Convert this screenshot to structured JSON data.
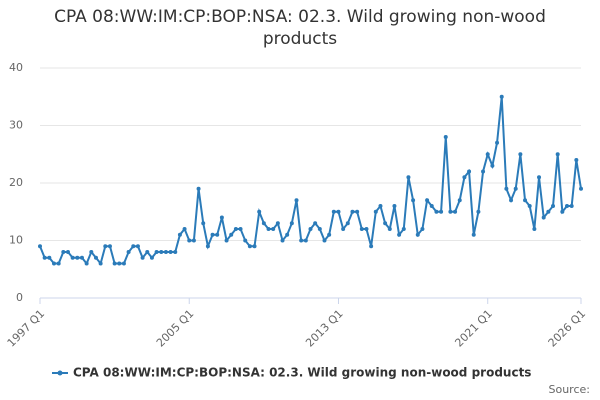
{
  "chart_data": {
    "type": "line",
    "title": "CPA 08:WW:IM:CP:BOP:NSA: 02.3. Wild growing non-wood products",
    "source": "Source:",
    "categories": [
      "1997 Q1",
      null,
      null,
      null,
      null,
      null,
      null,
      null,
      null,
      null,
      null,
      null,
      null,
      null,
      null,
      null,
      null,
      null,
      null,
      null,
      null,
      null,
      null,
      null,
      null,
      null,
      null,
      null,
      null,
      null,
      null,
      null,
      "2005 Q1",
      null,
      null,
      null,
      null,
      null,
      null,
      null,
      null,
      null,
      null,
      null,
      null,
      null,
      null,
      null,
      null,
      null,
      null,
      null,
      null,
      null,
      null,
      null,
      null,
      null,
      null,
      null,
      null,
      null,
      null,
      null,
      "2013 Q1",
      null,
      null,
      null,
      null,
      null,
      null,
      null,
      null,
      null,
      null,
      null,
      null,
      null,
      null,
      null,
      null,
      null,
      null,
      null,
      null,
      null,
      null,
      null,
      null,
      null,
      null,
      null,
      null,
      null,
      null,
      null,
      "2021 Q1",
      null,
      null,
      null,
      null,
      null,
      null,
      null,
      null,
      null,
      null,
      null,
      null,
      null,
      null,
      null,
      null,
      null,
      null,
      null,
      "2026 Q1"
    ],
    "series": [
      {
        "name": "CPA 08:WW:IM:CP:BOP:NSA: 02.3. Wild growing non-wood products",
        "color": "#2b7bb9",
        "values": [
          9,
          7,
          7,
          6,
          6,
          8,
          8,
          7,
          7,
          7,
          6,
          8,
          7,
          6,
          9,
          9,
          6,
          6,
          6,
          8,
          9,
          9,
          7,
          8,
          7,
          8,
          8,
          8,
          8,
          8,
          11,
          12,
          10,
          10,
          19,
          13,
          9,
          11,
          11,
          14,
          10,
          11,
          12,
          12,
          10,
          9,
          9,
          15,
          13,
          12,
          12,
          13,
          10,
          11,
          13,
          17,
          10,
          10,
          12,
          13,
          12,
          10,
          11,
          15,
          15,
          12,
          13,
          15,
          15,
          12,
          12,
          9,
          15,
          16,
          13,
          12,
          16,
          11,
          12,
          21,
          17,
          11,
          12,
          17,
          16,
          15,
          15,
          28,
          15,
          15,
          17,
          21,
          22,
          11,
          15,
          22,
          25,
          23,
          27,
          35,
          19,
          17,
          19,
          25,
          17,
          16,
          12,
          21,
          14,
          15,
          16,
          25,
          15,
          16,
          16,
          24,
          19
        ]
      }
    ],
    "ylim": [
      0,
      40
    ],
    "yticks": [
      0,
      10,
      20,
      30,
      40
    ],
    "grid": true,
    "legend": "bottom"
  }
}
